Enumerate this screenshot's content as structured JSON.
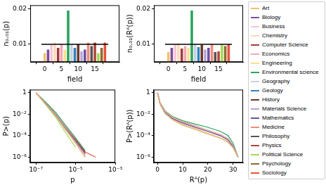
{
  "chart_data": [
    {
      "type": "bar",
      "x_label": "field",
      "y_label": "n₀.₀₁(p)",
      "x": [
        0,
        1,
        2,
        3,
        4,
        5,
        6,
        7,
        8,
        9,
        10,
        11,
        12,
        13,
        14,
        15,
        16,
        17,
        18
      ],
      "values": [
        0.0075,
        0.0085,
        0.0098,
        0.0105,
        0.009,
        0.01,
        0.0085,
        0.0195,
        0.0098,
        0.009,
        0.01,
        0.008,
        0.0085,
        0.0105,
        0.0095,
        0.0105,
        0.0075,
        0.009,
        0.0105
      ],
      "colors": [
        "#f5c16c",
        "#7b4f9d",
        "#f7c6d9",
        "#fcd9b6",
        "#a33b3b",
        "#f4a6b8",
        "#f9e08b",
        "#2ca25f",
        "#c6d0e0",
        "#3182bd",
        "#6b3a2a",
        "#b9a3d6",
        "#6a51a3",
        "#f08a7a",
        "#555555",
        "#b2473e",
        "#a6d854",
        "#8c6d31",
        "#e6553a"
      ],
      "hline": 0.01,
      "xlim": [
        -1,
        19
      ],
      "xticks": [
        0,
        5,
        10,
        15
      ],
      "ylim": [
        0.005,
        0.021
      ],
      "yticks": [
        0.01,
        0.02
      ],
      "grid": false
    },
    {
      "type": "bar",
      "x_label": "field",
      "y_label": "n₀.₀₁(Rᴬ(p))",
      "x": [
        0,
        1,
        2,
        3,
        4,
        5,
        6,
        7,
        8,
        9,
        10,
        11,
        12,
        13,
        14,
        15,
        16,
        17,
        18
      ],
      "values": [
        0.0078,
        0.009,
        0.01,
        0.0103,
        0.0088,
        0.0095,
        0.009,
        0.0195,
        0.01,
        0.0092,
        0.0098,
        0.0085,
        0.009,
        0.01,
        0.0078,
        0.008,
        0.01,
        0.0095,
        0.01
      ],
      "colors": [
        "#f5c16c",
        "#7b4f9d",
        "#f7c6d9",
        "#fcd9b6",
        "#a33b3b",
        "#f4a6b8",
        "#f9e08b",
        "#2ca25f",
        "#c6d0e0",
        "#3182bd",
        "#6b3a2a",
        "#b9a3d6",
        "#6a51a3",
        "#f08a7a",
        "#555555",
        "#b2473e",
        "#a6d854",
        "#8c6d31",
        "#e6553a"
      ],
      "hline": 0.01,
      "xlim": [
        -1,
        19
      ],
      "xticks": [
        0,
        5,
        10,
        15
      ],
      "ylim": [
        0.005,
        0.021
      ],
      "yticks": [
        0.01,
        0.02
      ],
      "grid": false
    },
    {
      "type": "line",
      "log": true,
      "x_label": "p",
      "y_label": "P>(p)",
      "x": [
        1e-07,
        3e-07,
        1e-06,
        3e-06,
        1e-05,
        3e-05,
        0.0001
      ],
      "series": [
        {
          "name": "Art",
          "color": "#f5c16c",
          "values": [
            1,
            0.09,
            0.007,
            0.0004,
            2e-05,
            1e-06,
            null
          ]
        },
        {
          "name": "Biology",
          "color": "#7b4f9d",
          "values": [
            1,
            0.1,
            0.008,
            0.0005,
            3e-05,
            2e-06,
            null
          ]
        },
        {
          "name": "Business",
          "color": "#f7c6d9",
          "values": [
            1,
            0.1,
            0.008,
            0.0005,
            3e-05,
            1.5e-06,
            null
          ]
        },
        {
          "name": "Chemistry",
          "color": "#fcd9b6",
          "values": [
            1,
            0.11,
            0.009,
            0.0006,
            3e-05,
            2e-06,
            null
          ]
        },
        {
          "name": "Computer Science",
          "color": "#a33b3b",
          "values": [
            1,
            0.1,
            0.009,
            0.0006,
            4e-05,
            3e-06,
            null
          ]
        },
        {
          "name": "Economics",
          "color": "#f4a6b8",
          "values": [
            1,
            0.1,
            0.008,
            0.0005,
            3e-05,
            2e-06,
            null
          ]
        },
        {
          "name": "Engineering",
          "color": "#f9e08b",
          "values": [
            1,
            0.1,
            0.008,
            0.0005,
            2.5e-05,
            1.5e-06,
            null
          ]
        },
        {
          "name": "Environmental science",
          "color": "#2ca25f",
          "values": [
            1,
            0.14,
            0.014,
            0.001,
            6e-05,
            4e-06,
            null
          ]
        },
        {
          "name": "Geography",
          "color": "#c6d0e0",
          "values": [
            1,
            0.1,
            0.008,
            0.0005,
            3e-05,
            2e-06,
            null
          ]
        },
        {
          "name": "Geology",
          "color": "#3182bd",
          "values": [
            1,
            0.11,
            0.009,
            0.0006,
            3.5e-05,
            2e-06,
            null
          ]
        },
        {
          "name": "History",
          "color": "#6b3a2a",
          "values": [
            1,
            0.1,
            0.008,
            0.0005,
            3e-05,
            2.5e-06,
            null
          ]
        },
        {
          "name": "Materials Science",
          "color": "#b9a3d6",
          "values": [
            1,
            0.1,
            0.008,
            0.0005,
            3e-05,
            2e-06,
            null
          ]
        },
        {
          "name": "Mathematics",
          "color": "#6a51a3",
          "values": [
            1,
            0.1,
            0.007,
            0.0004,
            2.5e-05,
            1.5e-06,
            null
          ]
        },
        {
          "name": "Medicine",
          "color": "#f08a7a",
          "values": [
            1,
            0.12,
            0.01,
            0.0007,
            4e-05,
            3e-06,
            1e-06
          ]
        },
        {
          "name": "Philosophy",
          "color": "#555555",
          "values": [
            1,
            0.09,
            0.007,
            0.0004,
            2e-05,
            1e-06,
            null
          ]
        },
        {
          "name": "Physics",
          "color": "#b2473e",
          "values": [
            1,
            0.11,
            0.009,
            0.0006,
            4e-05,
            3e-06,
            1e-06
          ]
        },
        {
          "name": "Political Science",
          "color": "#a6d854",
          "values": [
            1,
            0.08,
            0.005,
            0.0002,
            8e-06,
            null,
            null
          ]
        },
        {
          "name": "Psychology",
          "color": "#8c6d31",
          "values": [
            1,
            0.1,
            0.008,
            0.0005,
            3e-05,
            2e-06,
            null
          ]
        },
        {
          "name": "Sociology",
          "color": "#e6553a",
          "values": [
            1,
            0.1,
            0.009,
            0.0005,
            3e-05,
            2e-06,
            null
          ]
        }
      ],
      "xlim": [
        5e-08,
        0.001
      ],
      "xticks": [
        {
          "value": 1e-07,
          "label": "10⁻⁷"
        },
        {
          "value": 1e-05,
          "label": "10⁻⁵"
        },
        {
          "value": 0.001,
          "label": "10⁻³"
        }
      ],
      "ylim": [
        3e-07,
        2
      ],
      "yticks": [
        {
          "value": 1e-06,
          "label": "10⁻⁶"
        },
        {
          "value": 0.0001,
          "label": "10⁻⁴"
        },
        {
          "value": 0.01,
          "label": "10⁻²"
        },
        1
      ],
      "grid": false
    },
    {
      "type": "line",
      "log": "y",
      "legend": "right",
      "x_label": "Rᴬ(p)",
      "y_label": "P>(Rᴬ(p))",
      "x": [
        0,
        1,
        3,
        6,
        10,
        15,
        20,
        25,
        28,
        30,
        32
      ],
      "series": [
        {
          "name": "Art",
          "color": "#f5c16c",
          "values": [
            1,
            0.09,
            0.012,
            0.003,
            0.001,
            0.0004,
            0.00015,
            6e-05,
            2.5e-05,
            8e-06,
            1e-06
          ]
        },
        {
          "name": "Biology",
          "color": "#7b4f9d",
          "values": [
            1,
            0.1,
            0.015,
            0.004,
            0.0015,
            0.0006,
            0.00025,
            0.0001,
            4e-05,
            1e-05,
            1e-06
          ]
        },
        {
          "name": "Business",
          "color": "#f7c6d9",
          "values": [
            1,
            0.1,
            0.015,
            0.004,
            0.0015,
            0.0006,
            0.00025,
            0.0001,
            4e-05,
            1e-05,
            1e-06
          ]
        },
        {
          "name": "Chemistry",
          "color": "#fcd9b6",
          "values": [
            1,
            0.11,
            0.018,
            0.005,
            0.002,
            0.0008,
            0.0003,
            0.00012,
            5e-05,
            1.2e-05,
            1e-06
          ]
        },
        {
          "name": "Computer Science",
          "color": "#a33b3b",
          "values": [
            1,
            0.11,
            0.018,
            0.005,
            0.002,
            0.0008,
            0.0003,
            0.00012,
            5e-05,
            1.2e-05,
            1e-06
          ]
        },
        {
          "name": "Economics",
          "color": "#f4a6b8",
          "values": [
            1,
            0.1,
            0.015,
            0.004,
            0.0015,
            0.0006,
            0.00025,
            0.0001,
            4e-05,
            1e-05,
            1e-06
          ]
        },
        {
          "name": "Engineering",
          "color": "#f9e08b",
          "values": [
            1,
            0.09,
            0.012,
            0.003,
            0.001,
            0.0004,
            0.00015,
            6e-05,
            2.5e-05,
            8e-06,
            1e-06
          ]
        },
        {
          "name": "Environmental science",
          "color": "#2ca25f",
          "values": [
            1,
            0.12,
            0.02,
            0.006,
            0.0025,
            0.0012,
            0.0006,
            0.00025,
            0.0001,
            2e-05,
            1e-06
          ]
        },
        {
          "name": "Geography",
          "color": "#c6d0e0",
          "values": [
            1,
            0.1,
            0.015,
            0.004,
            0.0015,
            0.0006,
            0.00025,
            0.0001,
            4e-05,
            1e-05,
            1e-06
          ]
        },
        {
          "name": "Geology",
          "color": "#3182bd",
          "values": [
            1,
            0.11,
            0.018,
            0.005,
            0.002,
            0.0008,
            0.0003,
            0.00012,
            5e-05,
            1.2e-05,
            1e-06
          ]
        },
        {
          "name": "History",
          "color": "#6b3a2a",
          "values": [
            1,
            0.1,
            0.015,
            0.004,
            0.0015,
            0.0006,
            0.00025,
            0.0001,
            4e-05,
            1e-05,
            1e-06
          ]
        },
        {
          "name": "Materials Science",
          "color": "#b9a3d6",
          "values": [
            1,
            0.1,
            0.015,
            0.004,
            0.0015,
            0.0006,
            0.00025,
            0.0001,
            4e-05,
            1e-05,
            1e-06
          ]
        },
        {
          "name": "Mathematics",
          "color": "#6a51a3",
          "values": [
            1,
            0.09,
            0.012,
            0.003,
            0.001,
            0.0004,
            0.00015,
            6e-05,
            2.5e-05,
            8e-06,
            1e-06
          ]
        },
        {
          "name": "Medicine",
          "color": "#f08a7a",
          "values": [
            1,
            0.11,
            0.018,
            0.005,
            0.002,
            0.0008,
            0.0003,
            0.00012,
            5e-05,
            1.2e-05,
            1e-06
          ]
        },
        {
          "name": "Philosophy",
          "color": "#555555",
          "values": [
            1,
            0.09,
            0.012,
            0.003,
            0.001,
            0.0004,
            0.00015,
            6e-05,
            2.5e-05,
            8e-06,
            1e-06
          ]
        },
        {
          "name": "Physics",
          "color": "#b2473e",
          "values": [
            1,
            0.11,
            0.018,
            0.005,
            0.002,
            0.0008,
            0.0003,
            0.00012,
            5e-05,
            1.2e-05,
            1e-06
          ]
        },
        {
          "name": "Political Science",
          "color": "#a6d854",
          "values": [
            1,
            0.09,
            0.012,
            0.003,
            0.001,
            0.0004,
            0.00015,
            6e-05,
            2.5e-05,
            8e-06,
            1e-06
          ]
        },
        {
          "name": "Psychology",
          "color": "#8c6d31",
          "values": [
            1,
            0.1,
            0.015,
            0.004,
            0.0015,
            0.0006,
            0.00025,
            0.0001,
            4e-05,
            1e-05,
            1e-06
          ]
        },
        {
          "name": "Sociology",
          "color": "#e6553a",
          "values": [
            1,
            0.1,
            0.015,
            0.004,
            0.0015,
            0.0006,
            0.00025,
            0.0001,
            4e-05,
            1e-05,
            1e-06
          ]
        }
      ],
      "xlim": [
        -1.5,
        34
      ],
      "xticks": [
        0,
        10,
        20,
        30
      ],
      "ylim": [
        3e-07,
        2
      ],
      "yticks": [
        {
          "value": 1e-06,
          "label": "10⁻⁶"
        },
        {
          "value": 0.0001,
          "label": "10⁻⁴"
        },
        {
          "value": 0.01,
          "label": "10⁻²"
        },
        1
      ],
      "grid": false
    }
  ]
}
